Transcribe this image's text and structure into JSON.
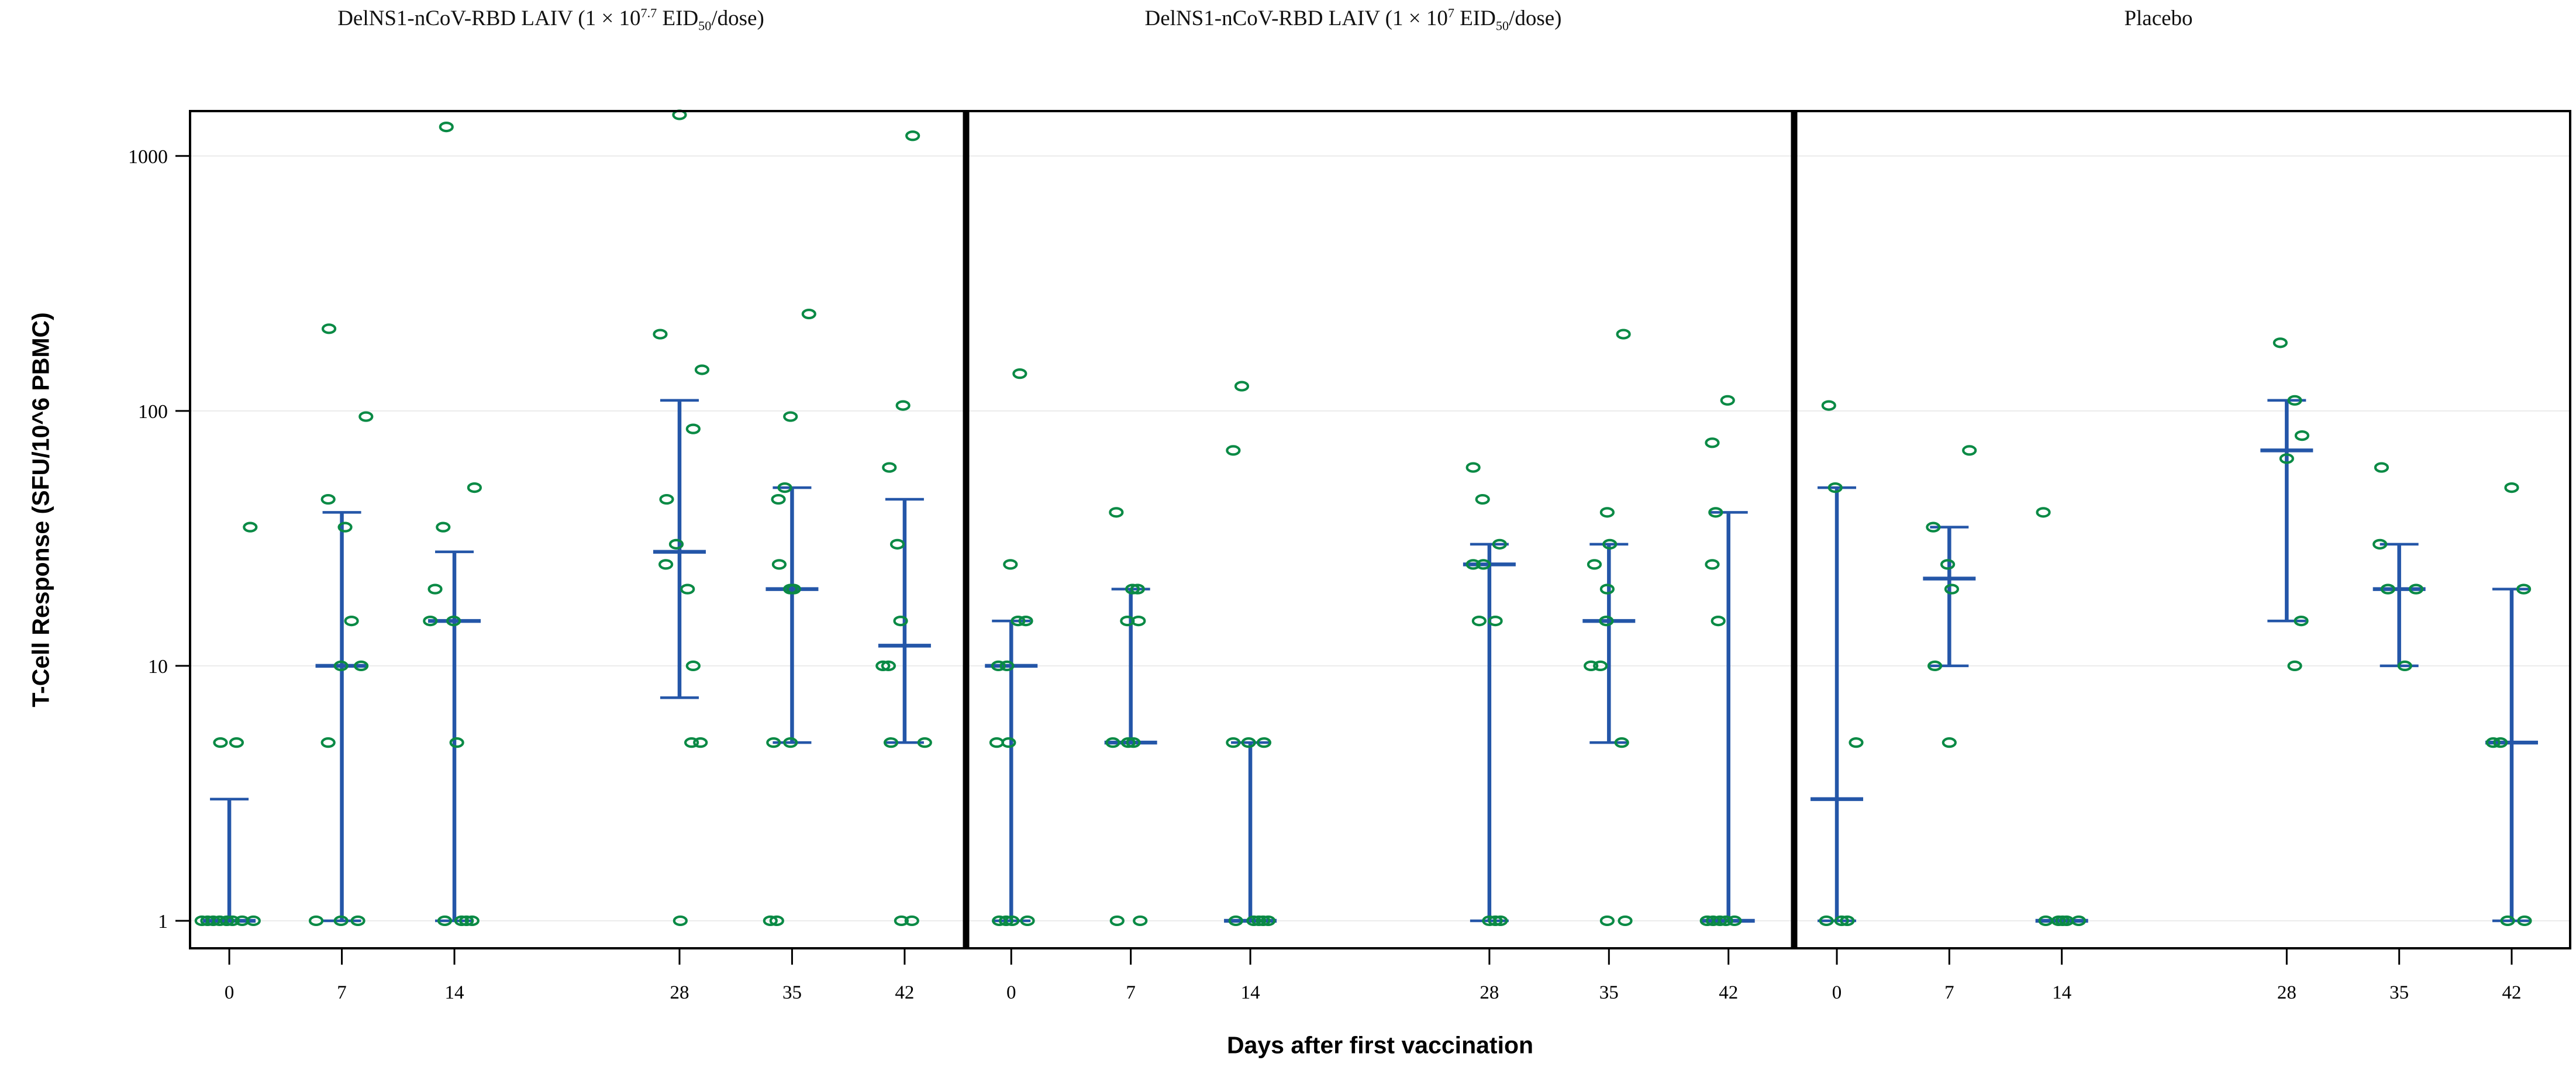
{
  "figure": {
    "ylabel": "T-Cell Response (SFU/10^6 PBMC)",
    "xlabel": "Days after first vaccination",
    "panel_titles": [
      {
        "prefix": "DelNS1-nCoV-RBD LAIV (1 × 10",
        "sup": "7.7",
        "mid": " EID",
        "sub": "50",
        "suffix": "/dose)"
      },
      {
        "prefix": "DelNS1-nCoV-RBD LAIV (1 × 10",
        "sup": "7",
        "mid": " EID",
        "sub": "50",
        "suffix": "/dose)"
      },
      {
        "prefix": "Placebo",
        "sup": "",
        "mid": "",
        "sub": "",
        "suffix": ""
      }
    ]
  },
  "chart_data": {
    "type": "scatter",
    "subtype": "jittered-dot-plot-with-median-error-bars",
    "log_y": true,
    "title": "",
    "xlabel": "Days after first vaccination",
    "ylabel": "T-Cell Response (SFU/10^6 PBMC)",
    "xlim": [
      -2.44,
      45.64
    ],
    "ylim": [
      0.78,
      1500
    ],
    "grid": "horizontal-light",
    "legend": "none",
    "point_color": "#0a8a45",
    "bar_color": "#2456a8",
    "grid_color": "#ebebeb",
    "frame_color": "#000000",
    "yticks_values": [
      1,
      10,
      100,
      1000
    ],
    "yticks_labels": [
      "1",
      "10",
      "100",
      "1000"
    ],
    "xticks": [
      0,
      7,
      14,
      28,
      35,
      42
    ],
    "panels": [
      {
        "name": "DelNS1-nCoV-RBD LAIV (1 × 10^7.7 EID50/dose)",
        "days": [
          {
            "day": 0,
            "lo": 1,
            "median": 1,
            "hi": 3,
            "points": [
              [
                35,
                1.3
              ],
              [
                5,
                -0.55
              ],
              [
                5,
                0.45
              ],
              [
                1,
                -1.7
              ],
              [
                1,
                -1.35
              ],
              [
                1,
                -1.0
              ],
              [
                1,
                -0.6
              ],
              [
                1,
                -0.15
              ],
              [
                1,
                0.2
              ],
              [
                1,
                0.8
              ],
              [
                1,
                1.5
              ]
            ]
          },
          {
            "day": 7,
            "lo": 1,
            "median": 10,
            "hi": 40,
            "points": [
              [
                210,
                -0.8
              ],
              [
                95,
                1.5
              ],
              [
                45,
                -0.85
              ],
              [
                35,
                0.2
              ],
              [
                15,
                0.6
              ],
              [
                10,
                -0.05
              ],
              [
                10,
                1.2
              ],
              [
                5,
                -0.85
              ],
              [
                1,
                -1.6
              ],
              [
                1,
                -0.05
              ],
              [
                1,
                1.0
              ]
            ]
          },
          {
            "day": 14,
            "lo": 1,
            "median": 15,
            "hi": 28,
            "points": [
              [
                1300,
                -0.5
              ],
              [
                50,
                1.25
              ],
              [
                35,
                -0.7
              ],
              [
                20,
                -1.2
              ],
              [
                15,
                -1.5
              ],
              [
                15,
                -0.05
              ],
              [
                5,
                0.15
              ],
              [
                1,
                -0.6
              ],
              [
                1,
                0.45
              ],
              [
                1,
                0.75
              ],
              [
                1,
                1.1
              ]
            ]
          },
          {
            "day": 28,
            "lo": 7.5,
            "median": 28,
            "hi": 110,
            "points": [
              [
                1450,
                0
              ],
              [
                200,
                -1.2
              ],
              [
                145,
                1.4
              ],
              [
                85,
                0.85
              ],
              [
                45,
                -0.8
              ],
              [
                30,
                -0.2
              ],
              [
                25,
                -0.85
              ],
              [
                20,
                0.5
              ],
              [
                10,
                0.85
              ],
              [
                5,
                0.75
              ],
              [
                5,
                1.3
              ],
              [
                1,
                0.05
              ]
            ]
          },
          {
            "day": 35,
            "lo": 5,
            "median": 20,
            "hi": 50,
            "points": [
              [
                240,
                1.05
              ],
              [
                95,
                -0.1
              ],
              [
                50,
                -0.45
              ],
              [
                45,
                -0.85
              ],
              [
                25,
                -0.8
              ],
              [
                20,
                -0.1
              ],
              [
                20,
                0.1
              ],
              [
                5,
                -1.15
              ],
              [
                5,
                -0.1
              ],
              [
                1,
                -1.35
              ],
              [
                1,
                -0.95
              ]
            ]
          },
          {
            "day": 42,
            "lo": 5,
            "median": 12,
            "hi": 45,
            "points": [
              [
                1200,
                0.5
              ],
              [
                105,
                -0.1
              ],
              [
                60,
                -0.95
              ],
              [
                30,
                -0.45
              ],
              [
                15,
                -0.25
              ],
              [
                10,
                -1.35
              ],
              [
                10,
                -1.0
              ],
              [
                5,
                -0.85
              ],
              [
                5,
                1.25
              ],
              [
                1,
                -0.2
              ],
              [
                1,
                0.45
              ]
            ]
          }
        ]
      },
      {
        "name": "DelNS1-nCoV-RBD LAIV (1 × 10^7 EID50/dose)",
        "days": [
          {
            "day": 0,
            "lo": 1,
            "median": 10,
            "hi": 15,
            "points": [
              [
                140,
                0.5
              ],
              [
                25,
                -0.05
              ],
              [
                15,
                0.4
              ],
              [
                15,
                0.85
              ],
              [
                10,
                -0.75
              ],
              [
                10,
                -0.25
              ],
              [
                5,
                -0.85
              ],
              [
                5,
                -0.15
              ],
              [
                1,
                -0.7
              ],
              [
                1,
                -0.3
              ],
              [
                1,
                0.05
              ],
              [
                1,
                0.95
              ]
            ]
          },
          {
            "day": 7,
            "lo": 5,
            "median": 5,
            "hi": 20,
            "points": [
              [
                40,
                -0.85
              ],
              [
                20,
                0.1
              ],
              [
                20,
                0.4
              ],
              [
                15,
                -0.2
              ],
              [
                15,
                0.45
              ],
              [
                5,
                -1.05
              ],
              [
                5,
                -0.15
              ],
              [
                5,
                0.15
              ],
              [
                1,
                -0.8
              ],
              [
                1,
                0.55
              ]
            ]
          },
          {
            "day": 14,
            "lo": 1,
            "median": 1,
            "hi": 5,
            "points": [
              [
                125,
                -0.5
              ],
              [
                70,
                -1.0
              ],
              [
                5,
                -1.0
              ],
              [
                5,
                -0.1
              ],
              [
                5,
                0.8
              ],
              [
                1,
                -0.85
              ],
              [
                1,
                0.2
              ],
              [
                1,
                0.5
              ],
              [
                1,
                0.75
              ],
              [
                1,
                1.05
              ]
            ]
          },
          {
            "day": 28,
            "lo": 1,
            "median": 25,
            "hi": 30,
            "points": [
              [
                60,
                -0.95
              ],
              [
                45,
                -0.4
              ],
              [
                30,
                0.6
              ],
              [
                25,
                -0.95
              ],
              [
                25,
                -0.35
              ],
              [
                15,
                -0.6
              ],
              [
                15,
                0.35
              ],
              [
                1,
                0.0
              ],
              [
                1,
                0.35
              ],
              [
                1,
                0.65
              ]
            ]
          },
          {
            "day": 35,
            "lo": 5,
            "median": 15,
            "hi": 30,
            "points": [
              [
                200,
                0.85
              ],
              [
                40,
                -0.1
              ],
              [
                30,
                0.05
              ],
              [
                25,
                -0.85
              ],
              [
                20,
                -0.1
              ],
              [
                15,
                -0.15
              ],
              [
                10,
                -1.05
              ],
              [
                10,
                -0.5
              ],
              [
                5,
                0.75
              ],
              [
                1,
                -0.1
              ],
              [
                1,
                0.95
              ]
            ]
          },
          {
            "day": 42,
            "lo": 1,
            "median": 1,
            "hi": 40,
            "points": [
              [
                110,
                -0.05
              ],
              [
                75,
                -0.95
              ],
              [
                40,
                -0.75
              ],
              [
                25,
                -0.95
              ],
              [
                15,
                -0.6
              ],
              [
                1,
                -1.25
              ],
              [
                1,
                -0.9
              ],
              [
                1,
                -0.5
              ],
              [
                1,
                -0.15
              ],
              [
                1,
                0.35
              ]
            ]
          }
        ]
      },
      {
        "name": "Placebo",
        "days": [
          {
            "day": 0,
            "lo": 1,
            "median": 3,
            "hi": 50,
            "points": [
              [
                105,
                -0.5
              ],
              [
                50,
                -0.1
              ],
              [
                5,
                1.2
              ],
              [
                1,
                -0.65
              ],
              [
                1,
                0.3
              ],
              [
                1,
                0.65
              ]
            ]
          },
          {
            "day": 7,
            "lo": 10,
            "median": 22,
            "hi": 35,
            "points": [
              [
                70,
                1.25
              ],
              [
                35,
                -1.0
              ],
              [
                25,
                -0.1
              ],
              [
                20,
                0.15
              ],
              [
                10,
                -0.9
              ],
              [
                5,
                0.0
              ]
            ]
          },
          {
            "day": 14,
            "lo": 1,
            "median": 1,
            "hi": 1,
            "points": [
              [
                40,
                -1.15
              ],
              [
                1,
                -1.0
              ],
              [
                1,
                -0.2
              ],
              [
                1,
                0.05
              ],
              [
                1,
                0.3
              ],
              [
                1,
                1.05
              ]
            ]
          },
          {
            "day": 28,
            "lo": 15,
            "median": 70,
            "hi": 110,
            "points": [
              [
                185,
                -0.4
              ],
              [
                110,
                0.5
              ],
              [
                80,
                0.95
              ],
              [
                65,
                0.0
              ],
              [
                15,
                0.9
              ],
              [
                10,
                0.5
              ]
            ]
          },
          {
            "day": 35,
            "lo": 10,
            "median": 20,
            "hi": 30,
            "points": [
              [
                60,
                -1.1
              ],
              [
                30,
                -1.2
              ],
              [
                20,
                -0.7
              ],
              [
                20,
                1.05
              ],
              [
                10,
                0.35
              ]
            ]
          },
          {
            "day": 42,
            "lo": 1,
            "median": 5,
            "hi": 20,
            "points": [
              [
                50,
                0.0
              ],
              [
                20,
                0.75
              ],
              [
                5,
                -1.15
              ],
              [
                5,
                -0.7
              ],
              [
                1,
                -0.25
              ],
              [
                1,
                0.8
              ]
            ]
          }
        ]
      }
    ]
  }
}
